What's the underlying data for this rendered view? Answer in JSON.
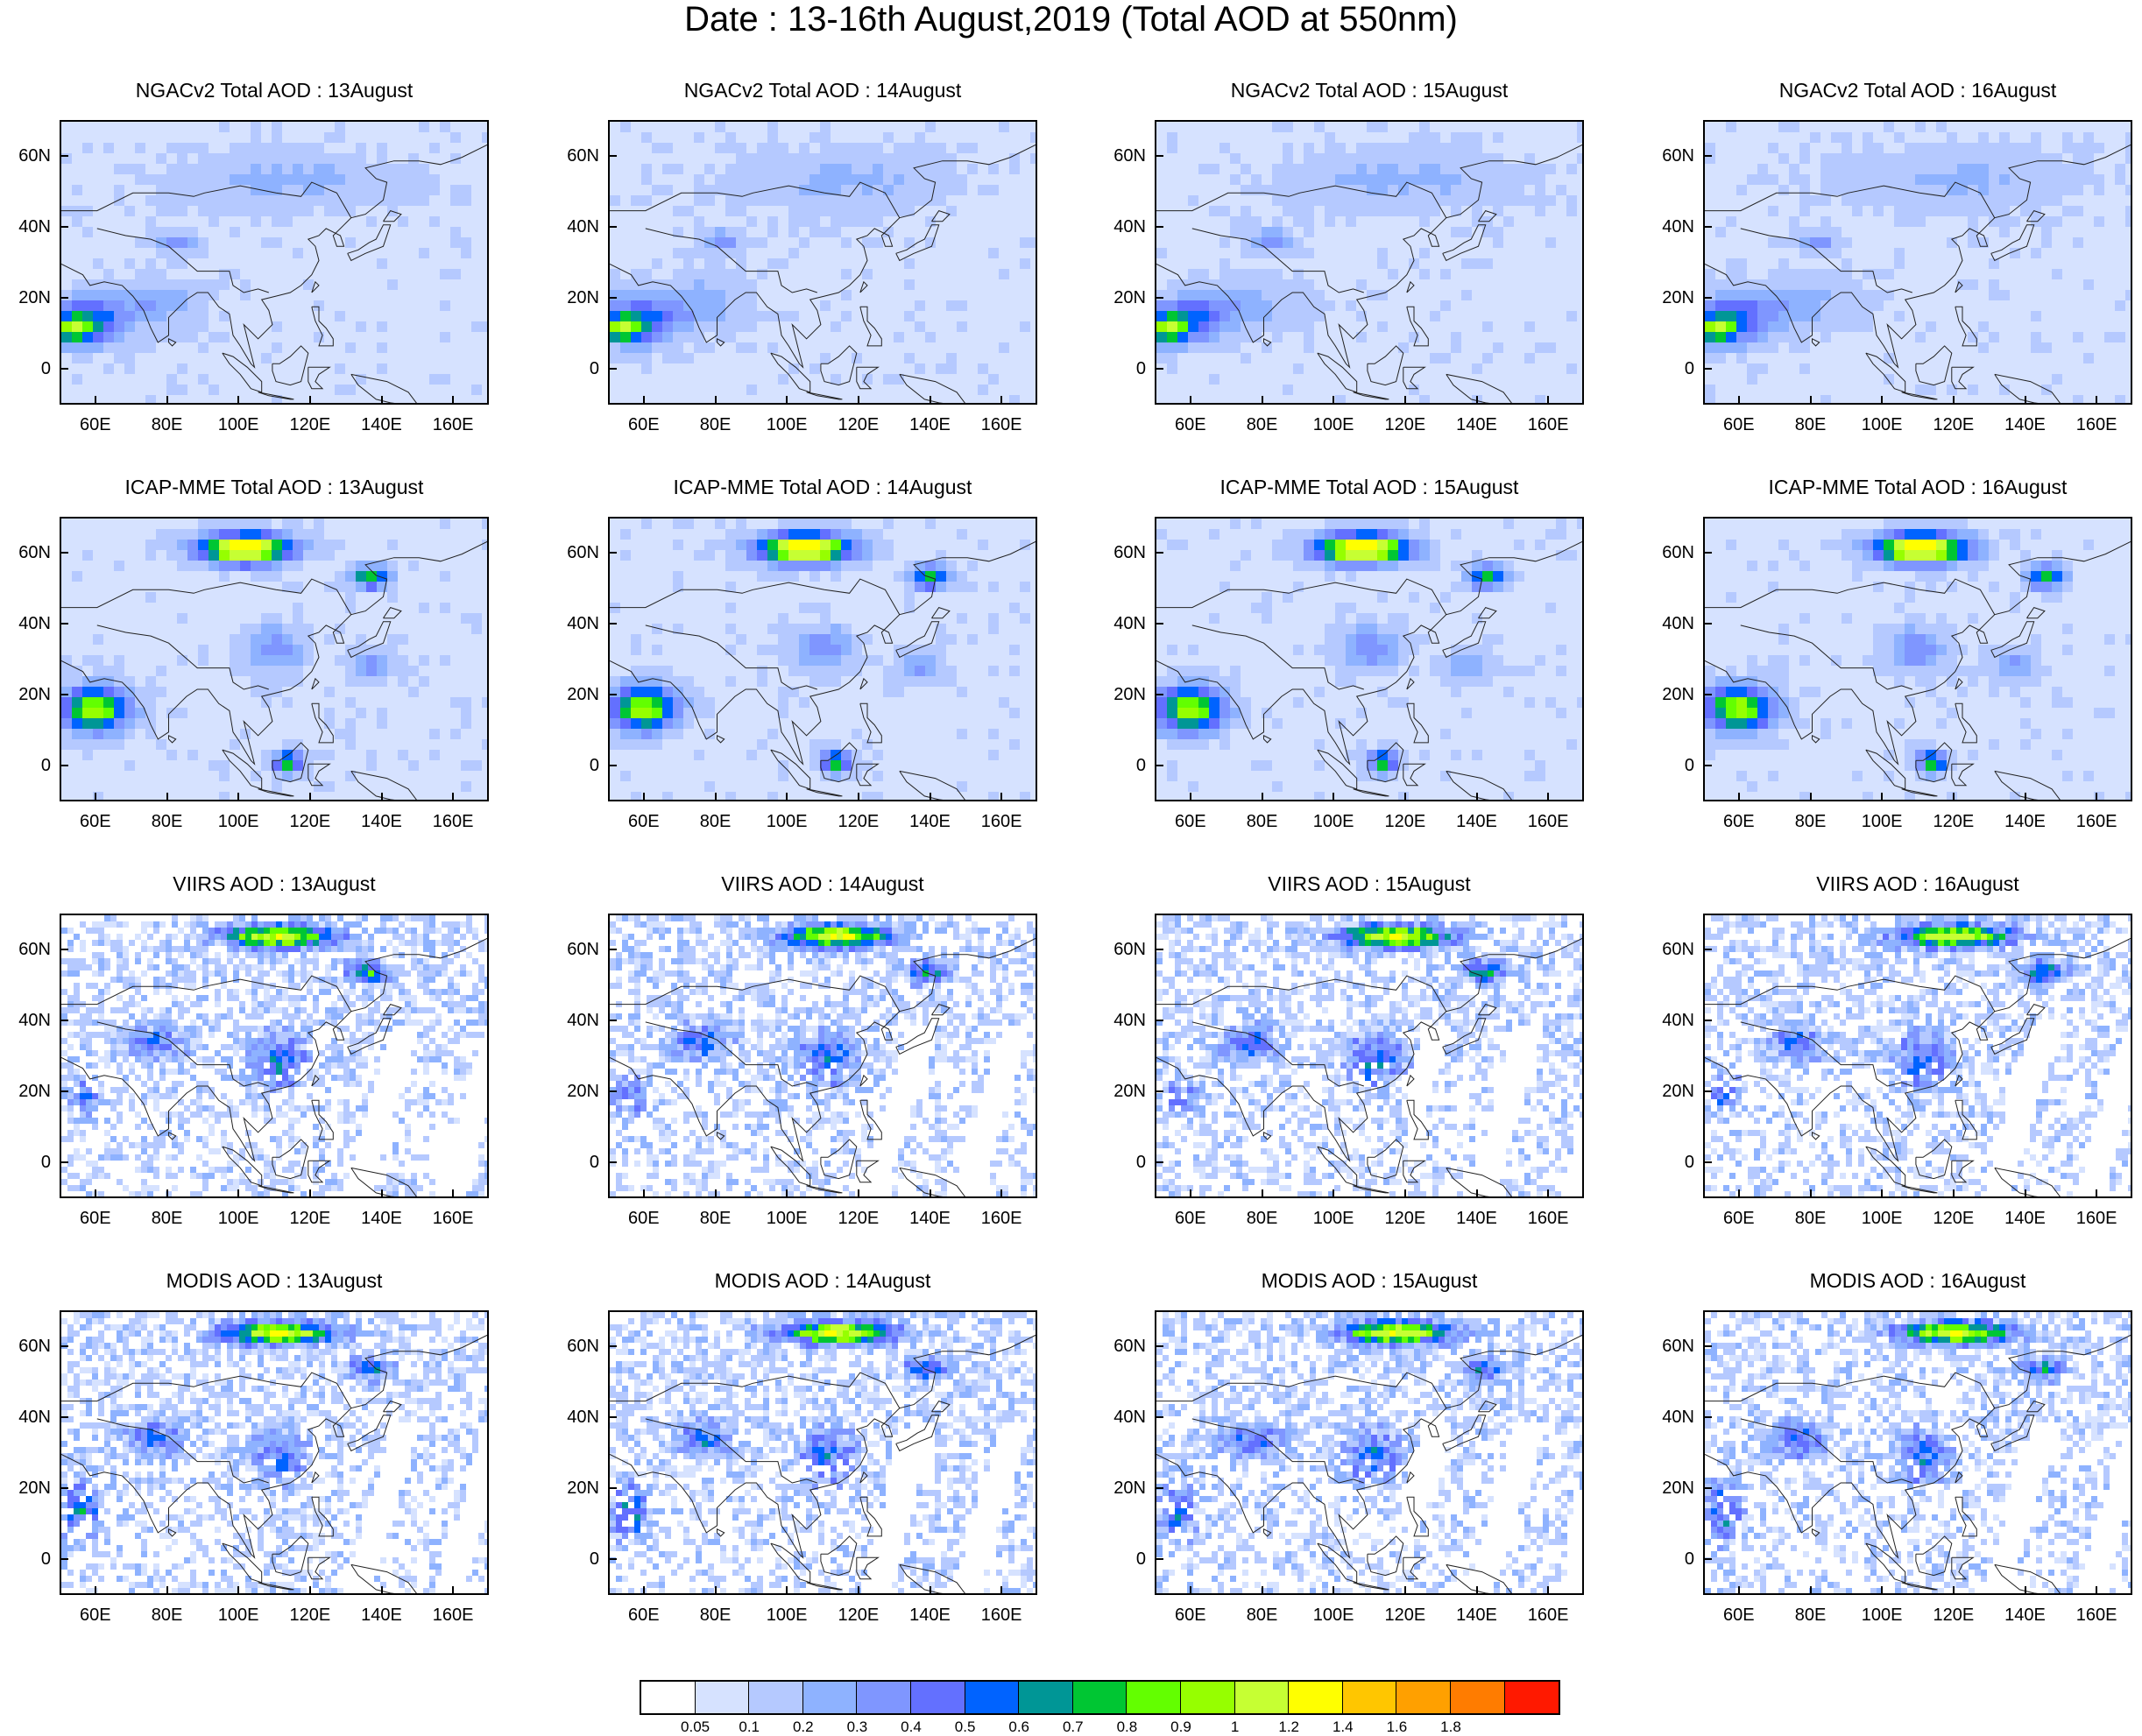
{
  "title": "Date : 13-16th August,2019 (Total AOD at 550nm)",
  "rows": [
    {
      "product": "NGACv2",
      "panels": [
        "NGACv2 Total AOD : 13August",
        "NGACv2 Total AOD : 14August",
        "NGACv2 Total AOD : 15August",
        "NGACv2 Total AOD : 16August"
      ]
    },
    {
      "product": "ICAP-MME",
      "panels": [
        "ICAP-MME Total AOD : 13August",
        "ICAP-MME Total AOD : 14August",
        "ICAP-MME Total AOD : 15August",
        "ICAP-MME Total AOD : 16August"
      ]
    },
    {
      "product": "VIIRS",
      "panels": [
        "VIIRS AOD : 13August",
        "VIIRS AOD : 14August",
        "VIIRS AOD : 15August",
        "VIIRS AOD : 16August"
      ]
    },
    {
      "product": "MODIS",
      "panels": [
        "MODIS AOD : 13August",
        "MODIS AOD : 14August",
        "MODIS AOD : 15August",
        "MODIS AOD : 16August"
      ]
    }
  ],
  "lat_ticks": [
    "60N",
    "40N",
    "20N",
    "0"
  ],
  "lon_ticks": [
    "60E",
    "80E",
    "100E",
    "120E",
    "140E",
    "160E"
  ],
  "colorbar": {
    "labels": [
      "0.05",
      "0.1",
      "0.2",
      "0.3",
      "0.4",
      "0.5",
      "0.6",
      "0.7",
      "0.8",
      "0.9",
      "1",
      "1.2",
      "1.4",
      "1.6",
      "1.8"
    ],
    "colors": [
      "#ffffff",
      "#d6e2ff",
      "#b5c9ff",
      "#8eb2ff",
      "#7f96ff",
      "#6370ff",
      "#0063ff",
      "#009696",
      "#00c633",
      "#63ff00",
      "#96ff00",
      "#c6ff33",
      "#ffff00",
      "#ffc600",
      "#ffa000",
      "#ff7c00",
      "#ff1900"
    ]
  },
  "map_extent": {
    "lon_min": 50,
    "lon_max": 170,
    "lat_min": -10,
    "lat_max": 70
  }
}
